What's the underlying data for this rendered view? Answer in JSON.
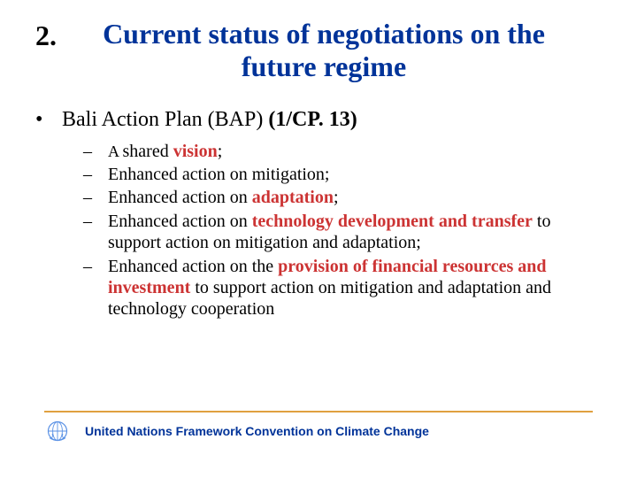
{
  "colors": {
    "title_color": "#003399",
    "accent_color": "#cc3333",
    "text_color": "#000000",
    "footer_line": "#e0a040"
  },
  "fonts": {
    "title_size": 32,
    "l1_size": 24,
    "l2_size": 20,
    "footer_size": 14
  },
  "slide_number": "2.",
  "title_line1": "Current status of negotiations on the",
  "title_line2": "future regime",
  "l1_bullet": "•",
  "l1_pre": "Bali Action Plan (BAP) ",
  "l1_bold": "(1/CP. 13)",
  "l2_dash": "–",
  "items": [
    {
      "pre": "A ",
      "plain1": "shared ",
      "bold1": "vision",
      "plain2": ";"
    },
    {
      "plain1": "Enhanced action on mitigation;"
    },
    {
      "plain1": "Enhanced action on ",
      "bold1": "adaptation",
      "plain2": ";"
    },
    {
      "plain1": "Enhanced action on ",
      "bold1": "technology development and transfer",
      "plain2": " to support action on mitigation and adaptation;"
    },
    {
      "plain1": "Enhanced action on the ",
      "bold1": "provision of financial resources and investment",
      "plain2": " to support action on mitigation and adaptation and technology cooperation"
    }
  ],
  "footer_text": "United Nations Framework Convention on Climate Change"
}
